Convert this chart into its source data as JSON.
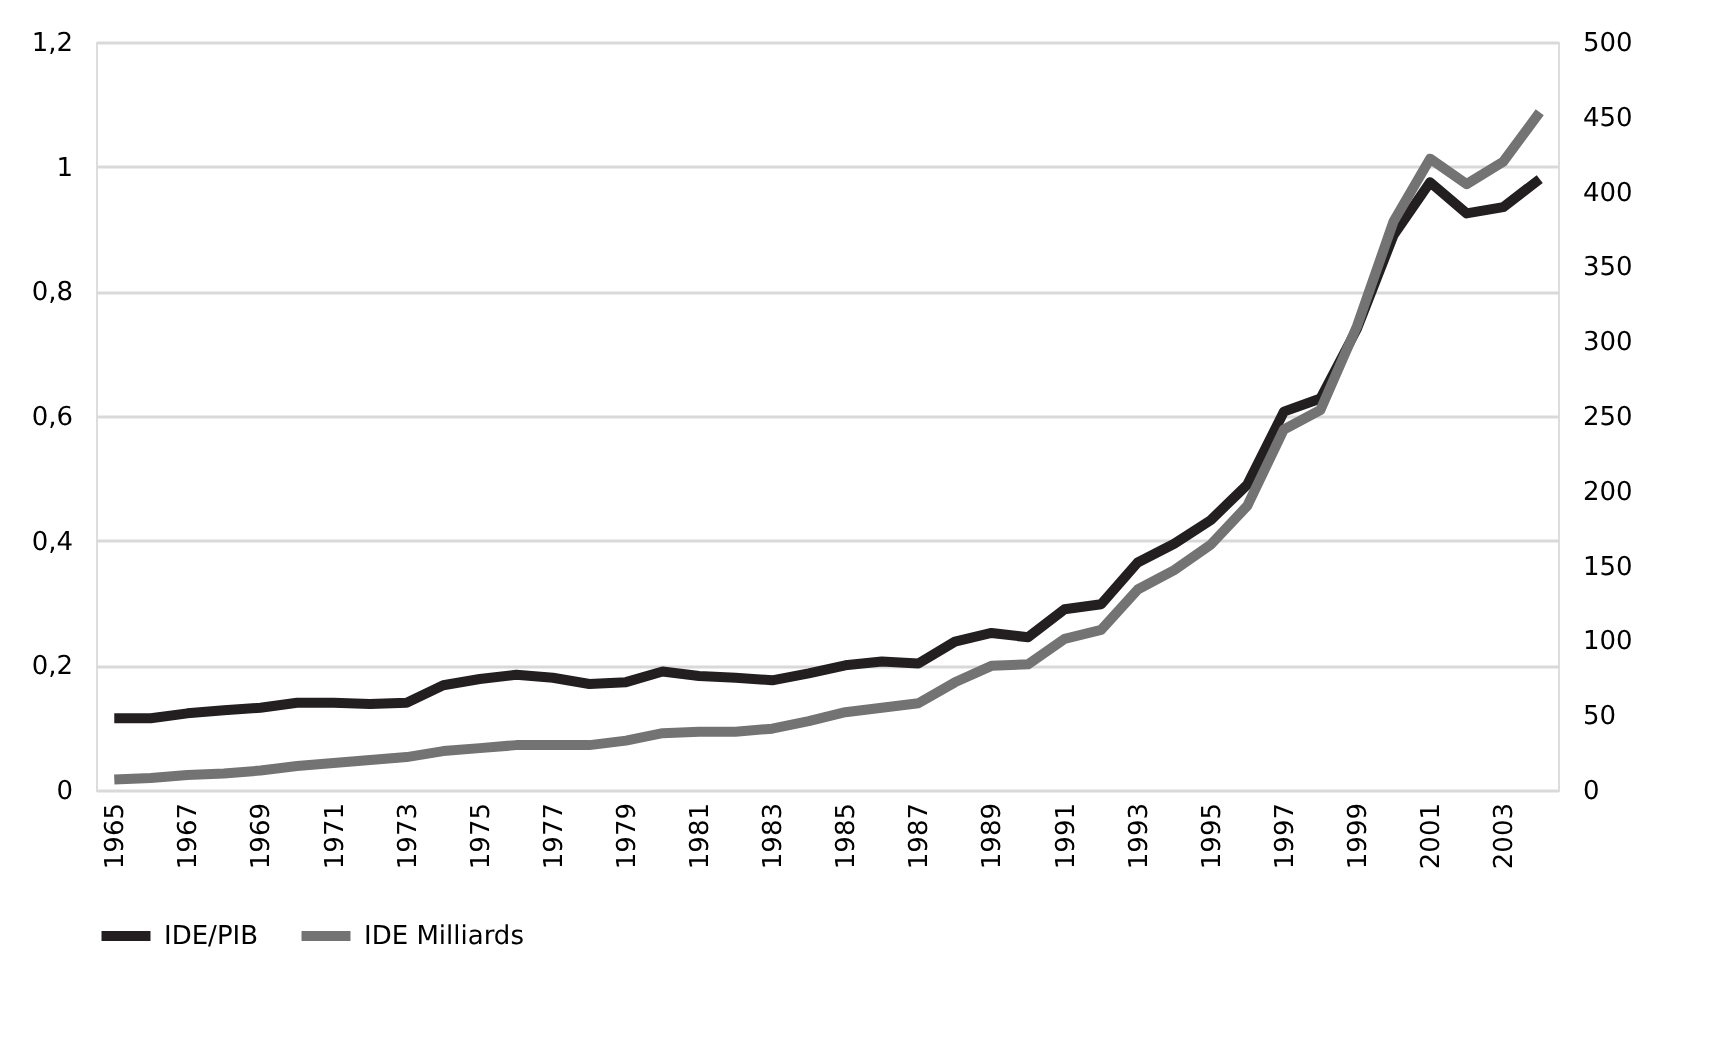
{
  "chart_data": {
    "type": "line",
    "categories": [
      "1965",
      null,
      "1967",
      null,
      "1969",
      null,
      "1971",
      null,
      "1973",
      null,
      "1975",
      null,
      "1977",
      null,
      "1979",
      null,
      "1981",
      null,
      "1983",
      null,
      "1985",
      null,
      "1987",
      null,
      "1989",
      null,
      "1991",
      null,
      "1993",
      null,
      "1995",
      null,
      "1997",
      null,
      "1999",
      null,
      "2001",
      null,
      "2003",
      null
    ],
    "series": [
      {
        "name": "IDE/PIB",
        "color": "#231f20",
        "values": [
          0.115,
          0.115,
          0.123,
          0.128,
          0.132,
          0.14,
          0.14,
          0.138,
          0.14,
          0.168,
          0.178,
          0.185,
          0.18,
          0.17,
          0.173,
          0.19,
          0.183,
          0.18,
          0.176,
          0.187,
          0.2,
          0.206,
          0.203,
          0.238,
          0.252,
          0.245,
          0.29,
          0.298,
          0.365,
          0.395,
          0.433,
          0.49,
          0.607,
          0.628,
          0.74,
          0.89,
          0.975,
          0.925,
          0.935,
          0.98
        ]
      },
      {
        "name": "IDE Milliards",
        "color": "#737373",
        "axis": "y2",
        "values": [
          7,
          8,
          10,
          11,
          13,
          16,
          18,
          20,
          22,
          26,
          28,
          30,
          30,
          30,
          33,
          38,
          39,
          39,
          41,
          46,
          52,
          55,
          58,
          72,
          83,
          84,
          101,
          107,
          134,
          147,
          164,
          190,
          241,
          254,
          310,
          380,
          422,
          405,
          420,
          453
        ]
      }
    ],
    "ylim": [
      0,
      1.2
    ],
    "yticks": [
      0,
      {
        "value": 0.2,
        "label": "0,2"
      },
      {
        "value": 0.4,
        "label": "0,4"
      },
      {
        "value": 0.6,
        "label": "0,6"
      },
      {
        "value": 0.8,
        "label": "0,8"
      },
      1,
      {
        "value": 1.2,
        "label": "1,2"
      }
    ],
    "y2lim": [
      0,
      500
    ],
    "y2ticks": [
      0,
      50,
      100,
      150,
      200,
      250,
      300,
      350,
      400,
      450,
      500
    ],
    "grid": "y",
    "legend": "bottom",
    "line_style": "solid",
    "marker": "none"
  }
}
